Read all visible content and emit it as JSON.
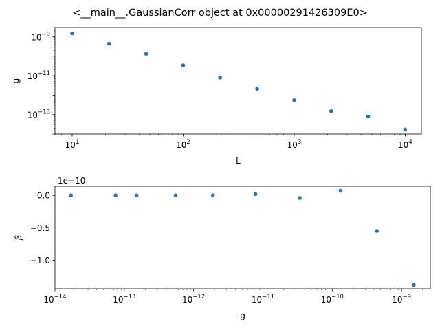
{
  "figure": {
    "title": "<__main__.GaussianCorr object at 0x00000291426309E0>"
  },
  "chart_data": [
    {
      "type": "scatter",
      "xscale": "log",
      "yscale": "log",
      "xlabel": "L",
      "ylabel": "g",
      "xlim": [
        7.0,
        14000
      ],
      "ylim": [
        1e-14,
        3e-09
      ],
      "xticks": [
        10,
        100,
        1000,
        10000
      ],
      "xtick_labels": [
        {
          "base": "10",
          "exp": "1"
        },
        {
          "base": "10",
          "exp": "2"
        },
        {
          "base": "10",
          "exp": "3"
        },
        {
          "base": "10",
          "exp": "4"
        }
      ],
      "yticks": [
        1e-13,
        1e-11,
        1e-09
      ],
      "ytick_labels": [
        {
          "base": "10",
          "exp": "−13"
        },
        {
          "base": "10",
          "exp": "−11"
        },
        {
          "base": "10",
          "exp": "−9"
        }
      ],
      "series": [
        {
          "color": "#1f77b4",
          "x": [
            10,
            21.5,
            46.4,
            100,
            215,
            464,
            1000,
            2154,
            4642,
            10000
          ],
          "y": [
            1.5e-09,
            4.4e-10,
            1.32e-10,
            3.4e-11,
            8e-12,
            2.1e-12,
            5.5e-13,
            1.5e-13,
            8e-14,
            1.7e-14
          ]
        }
      ]
    },
    {
      "type": "scatter",
      "xscale": "log",
      "yscale": "linear",
      "xlabel": "g",
      "ylabel": "β",
      "offset_text": "1e−10",
      "xlim": [
        1e-14,
        2.6e-09
      ],
      "ylim": [
        -1.44,
        0.14
      ],
      "xticks": [
        1e-14,
        1e-13,
        1e-12,
        1e-11,
        1e-10,
        1e-09
      ],
      "xtick_labels": [
        {
          "base": "10",
          "exp": "−14"
        },
        {
          "base": "10",
          "exp": "−13"
        },
        {
          "base": "10",
          "exp": "−12"
        },
        {
          "base": "10",
          "exp": "−11"
        },
        {
          "base": "10",
          "exp": "−10"
        },
        {
          "base": "10",
          "exp": "−9"
        }
      ],
      "yticks": [
        0.0,
        -0.5,
        -1.0
      ],
      "ytick_labels": [
        "0.0",
        "−0.5",
        "−1.0"
      ],
      "series": [
        {
          "color": "#1f77b4",
          "x": [
            1.7e-14,
            7.5e-14,
            1.5e-13,
            5.5e-13,
            1.9e-12,
            7.8e-12,
            3.4e-11,
            1.32e-10,
            4.4e-10,
            1.5e-09
          ],
          "y": [
            0.0,
            0.0,
            0.0,
            0.0,
            0.0,
            0.02,
            -0.04,
            0.07,
            -0.55,
            -1.38
          ]
        }
      ]
    }
  ]
}
